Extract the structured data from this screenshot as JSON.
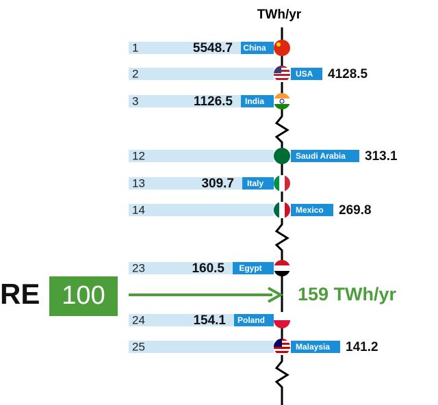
{
  "header": {
    "unit": "TWh/yr"
  },
  "rows": [
    {
      "rank": 1,
      "value": 5548.7,
      "country": "China"
    },
    {
      "rank": 2,
      "value": 4128.5,
      "country": "USA"
    },
    {
      "rank": 3,
      "value": 1126.5,
      "country": "India"
    },
    {
      "rank": 12,
      "value": 313.1,
      "country": "Saudi Arabia"
    },
    {
      "rank": 13,
      "value": 309.7,
      "country": "Italy"
    },
    {
      "rank": 14,
      "value": 269.8,
      "country": "Mexico"
    },
    {
      "rank": 23,
      "value": 160.5,
      "country": "Egypt"
    },
    {
      "rank": 24,
      "value": 154.1,
      "country": "Poland"
    },
    {
      "rank": 25,
      "value": 141.2,
      "country": "Malaysia"
    }
  ],
  "re100": {
    "prefix": "RE",
    "number": "100",
    "consumption": "159 TWh/yr"
  }
}
